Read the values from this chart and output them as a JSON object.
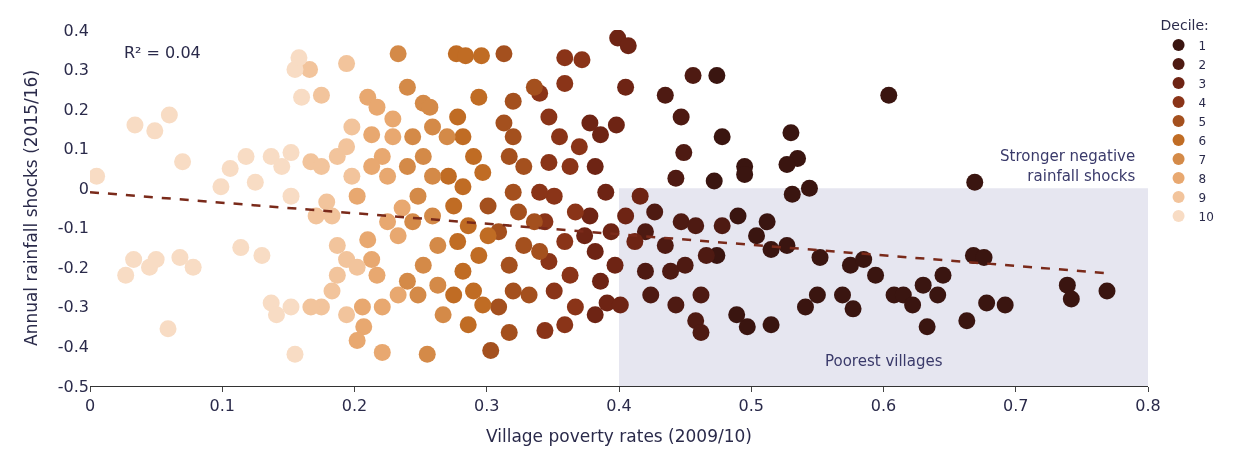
{
  "chart_data": {
    "type": "scatter",
    "xlabel": "Village poverty rates (2009/10)",
    "ylabel": "Annual rainfall shocks (2015/16)",
    "legend_title": "Decile:",
    "xlim": [
      0,
      0.8
    ],
    "xticks": [
      0,
      0.1,
      0.2,
      0.3,
      0.4,
      0.5,
      0.6,
      0.7,
      0.8
    ],
    "ylim": [
      -0.5,
      0.4
    ],
    "yticks": [
      -0.5,
      -0.4,
      -0.3,
      -0.2,
      -0.1,
      0,
      0.1,
      0.2,
      0.3,
      0.4
    ],
    "grid": false,
    "legend": "top right",
    "marker": "circle",
    "annotations": [
      "R² = 0.04",
      "Stronger negative rainfall shocks"
    ],
    "bands": [
      {
        "axis": "x",
        "from": 0.4,
        "to": 0.8,
        "label": "Poorest villages",
        "color": "#e6e6f0"
      }
    ],
    "series": [
      {
        "name": "1",
        "color": "#3a1510",
        "x": [
          0.474,
          0.478,
          0.495,
          0.495,
          0.472,
          0.49,
          0.504,
          0.512,
          0.53,
          0.535,
          0.527,
          0.544,
          0.531,
          0.515,
          0.527,
          0.552,
          0.55,
          0.541,
          0.515,
          0.497,
          0.489,
          0.569,
          0.577,
          0.575,
          0.585,
          0.594,
          0.604,
          0.608,
          0.615,
          0.622,
          0.63,
          0.633,
          0.641,
          0.645,
          0.663,
          0.669,
          0.668,
          0.676,
          0.678,
          0.692,
          0.739,
          0.742,
          0.769,
          0.474
        ],
        "values": [
          0.285,
          0.13,
          0.055,
          0.035,
          0.018,
          -0.07,
          -0.12,
          -0.085,
          0.14,
          0.075,
          0.06,
          0.0,
          -0.015,
          -0.155,
          -0.145,
          -0.175,
          -0.27,
          -0.3,
          -0.345,
          -0.35,
          -0.32,
          -0.27,
          -0.305,
          -0.195,
          -0.18,
          -0.22,
          0.235,
          -0.27,
          -0.27,
          -0.295,
          -0.245,
          -0.35,
          -0.27,
          -0.22,
          -0.335,
          0.015,
          -0.17,
          -0.175,
          -0.29,
          -0.295,
          -0.245,
          -0.28,
          -0.26,
          -0.17
        ]
      },
      {
        "name": "2",
        "color": "#4e1a12",
        "x": [
          0.435,
          0.456,
          0.447,
          0.449,
          0.443,
          0.427,
          0.447,
          0.458,
          0.435,
          0.42,
          0.45,
          0.466,
          0.462,
          0.443,
          0.458,
          0.462,
          0.424,
          0.42,
          0.478,
          0.439
        ],
        "values": [
          0.235,
          0.285,
          0.18,
          0.09,
          0.025,
          -0.06,
          -0.085,
          -0.095,
          -0.145,
          -0.21,
          -0.195,
          -0.17,
          -0.27,
          -0.295,
          -0.335,
          -0.365,
          -0.27,
          -0.11,
          -0.095,
          -0.21
        ]
      },
      {
        "name": "3",
        "color": "#6e2414",
        "x": [
          0.399,
          0.407,
          0.405,
          0.398,
          0.386,
          0.378,
          0.382,
          0.39,
          0.378,
          0.394,
          0.382,
          0.397,
          0.386,
          0.391,
          0.382,
          0.401,
          0.416,
          0.412,
          0.374,
          0.405
        ],
        "values": [
          0.38,
          0.36,
          0.255,
          0.16,
          0.135,
          0.165,
          0.055,
          -0.01,
          -0.07,
          -0.11,
          -0.16,
          -0.195,
          -0.235,
          -0.29,
          -0.32,
          -0.295,
          -0.02,
          -0.135,
          -0.12,
          -0.07
        ]
      },
      {
        "name": "4",
        "color": "#8a3418",
        "x": [
          0.359,
          0.372,
          0.359,
          0.347,
          0.355,
          0.347,
          0.363,
          0.351,
          0.344,
          0.359,
          0.347,
          0.363,
          0.351,
          0.359,
          0.344,
          0.367,
          0.34,
          0.37,
          0.367,
          0.34
        ],
        "values": [
          0.33,
          0.325,
          0.265,
          0.18,
          0.13,
          0.065,
          0.055,
          -0.02,
          -0.085,
          -0.135,
          -0.185,
          -0.22,
          -0.26,
          -0.345,
          -0.36,
          -0.3,
          0.24,
          0.105,
          -0.06,
          -0.01
        ]
      },
      {
        "name": "5",
        "color": "#a4501e",
        "x": [
          0.313,
          0.32,
          0.313,
          0.32,
          0.317,
          0.328,
          0.32,
          0.324,
          0.309,
          0.328,
          0.317,
          0.32,
          0.309,
          0.317,
          0.303,
          0.336,
          0.34,
          0.332,
          0.336,
          0.301
        ],
        "values": [
          0.34,
          0.22,
          0.165,
          0.13,
          0.08,
          0.055,
          -0.01,
          -0.06,
          -0.11,
          -0.145,
          -0.195,
          -0.26,
          -0.3,
          -0.365,
          -0.41,
          -0.085,
          -0.16,
          -0.27,
          0.255,
          -0.045
        ]
      },
      {
        "name": "6",
        "color": "#c06c24",
        "x": [
          0.277,
          0.284,
          0.296,
          0.294,
          0.278,
          0.282,
          0.29,
          0.297,
          0.282,
          0.275,
          0.286,
          0.278,
          0.294,
          0.282,
          0.29,
          0.275,
          0.297,
          0.286,
          0.301,
          0.271
        ],
        "values": [
          0.34,
          0.335,
          0.335,
          0.23,
          0.18,
          0.13,
          0.08,
          0.04,
          0.004,
          -0.045,
          -0.095,
          -0.135,
          -0.17,
          -0.21,
          -0.26,
          -0.27,
          -0.295,
          -0.345,
          -0.12,
          0.03
        ]
      },
      {
        "name": "7",
        "color": "#d48a48",
        "x": [
          0.233,
          0.24,
          0.252,
          0.257,
          0.244,
          0.252,
          0.259,
          0.248,
          0.244,
          0.259,
          0.263,
          0.252,
          0.24,
          0.248,
          0.263,
          0.255,
          0.267,
          0.27,
          0.24,
          0.259
        ],
        "values": [
          0.34,
          0.255,
          0.215,
          0.205,
          0.13,
          0.08,
          0.03,
          -0.02,
          -0.085,
          -0.07,
          -0.145,
          -0.195,
          -0.235,
          -0.27,
          -0.245,
          -0.42,
          -0.32,
          0.13,
          0.055,
          0.155
        ]
      },
      {
        "name": "8",
        "color": "#e8a870",
        "x": [
          0.213,
          0.21,
          0.217,
          0.229,
          0.221,
          0.225,
          0.213,
          0.202,
          0.21,
          0.213,
          0.217,
          0.221,
          0.207,
          0.202,
          0.221,
          0.233,
          0.233,
          0.236,
          0.229,
          0.225,
          0.206
        ],
        "values": [
          0.135,
          0.23,
          0.205,
          0.175,
          0.08,
          0.03,
          0.055,
          -0.02,
          -0.13,
          -0.18,
          -0.22,
          -0.3,
          -0.35,
          -0.385,
          -0.415,
          -0.27,
          -0.12,
          -0.05,
          0.13,
          -0.085,
          -0.3
        ]
      },
      {
        "name": "9",
        "color": "#f2c49c",
        "x": [
          0.194,
          0.166,
          0.175,
          0.167,
          0.175,
          0.187,
          0.194,
          0.198,
          0.179,
          0.183,
          0.187,
          0.194,
          0.187,
          0.183,
          0.175,
          0.194,
          0.167,
          0.171,
          0.198,
          0.202
        ],
        "values": [
          0.315,
          0.3,
          0.235,
          0.067,
          0.055,
          0.08,
          0.105,
          0.03,
          -0.035,
          -0.07,
          -0.145,
          -0.18,
          -0.22,
          -0.26,
          -0.3,
          -0.32,
          -0.3,
          -0.07,
          0.155,
          -0.2
        ]
      },
      {
        "name": "10",
        "color": "#f8dcc4",
        "x": [
          0.005,
          0.034,
          0.049,
          0.06,
          0.07,
          0.027,
          0.033,
          0.045,
          0.05,
          0.059,
          0.068,
          0.078,
          0.099,
          0.106,
          0.118,
          0.125,
          0.114,
          0.13,
          0.137,
          0.145,
          0.152,
          0.155,
          0.158,
          0.152,
          0.155,
          0.137,
          0.16,
          0.152,
          0.141
        ],
        "values": [
          0.03,
          0.16,
          0.145,
          0.185,
          0.067,
          -0.22,
          -0.18,
          -0.2,
          -0.18,
          -0.355,
          -0.175,
          -0.2,
          0.004,
          0.05,
          0.08,
          0.015,
          -0.15,
          -0.17,
          0.08,
          0.055,
          0.09,
          0.3,
          0.33,
          -0.3,
          -0.42,
          -0.29,
          0.23,
          -0.02,
          -0.32
        ]
      },
      {
        "type": "line",
        "color": "#7a2a1a",
        "line_style": "dashed",
        "marker": "none",
        "x": [
          0,
          0.77
        ],
        "values": [
          -0.01,
          -0.215
        ]
      }
    ]
  }
}
